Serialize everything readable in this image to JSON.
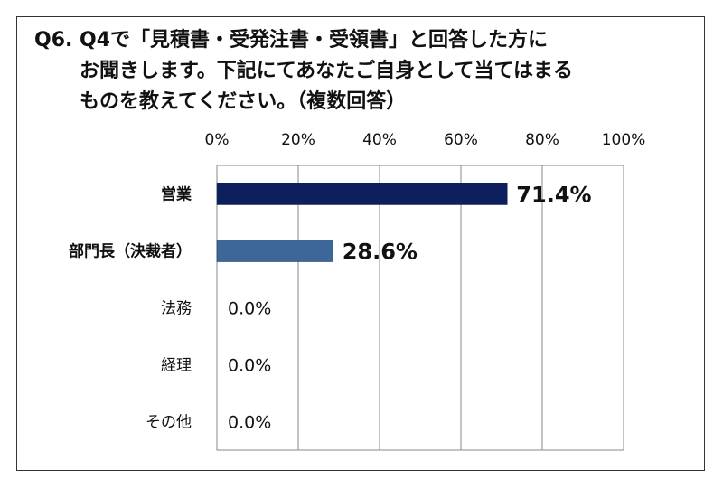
{
  "chart_data": {
    "type": "bar",
    "orientation": "horizontal",
    "title_lines": [
      "Q6. Q4で「見積書・受発注書・受領書」と回答した方に",
      "お聞きします。下記にてあなたご自身として当てはまる",
      "ものを教えてください。（複数回答）"
    ],
    "categories": [
      "営業",
      "部門長（決裁者）",
      "法務",
      "経理",
      "その他"
    ],
    "category_bold": [
      true,
      true,
      false,
      false,
      false
    ],
    "values": [
      71.4,
      28.6,
      0.0,
      0.0,
      0.0
    ],
    "value_labels": [
      "71.4%",
      "28.6%",
      "0.0%",
      "0.0%",
      "0.0%"
    ],
    "value_label_bold": [
      true,
      true,
      false,
      false,
      false
    ],
    "bar_colors": [
      "#0d1f5c",
      "#3d6699",
      "#3d6699",
      "#3d6699",
      "#3d6699"
    ],
    "xlim": [
      0,
      100
    ],
    "x_ticks": [
      0,
      20,
      40,
      60,
      80,
      100
    ],
    "x_tick_labels": [
      "0%",
      "20%",
      "40%",
      "60%",
      "80%",
      "100%"
    ],
    "x_axis_position": "top",
    "grid": true,
    "legend": "none"
  }
}
